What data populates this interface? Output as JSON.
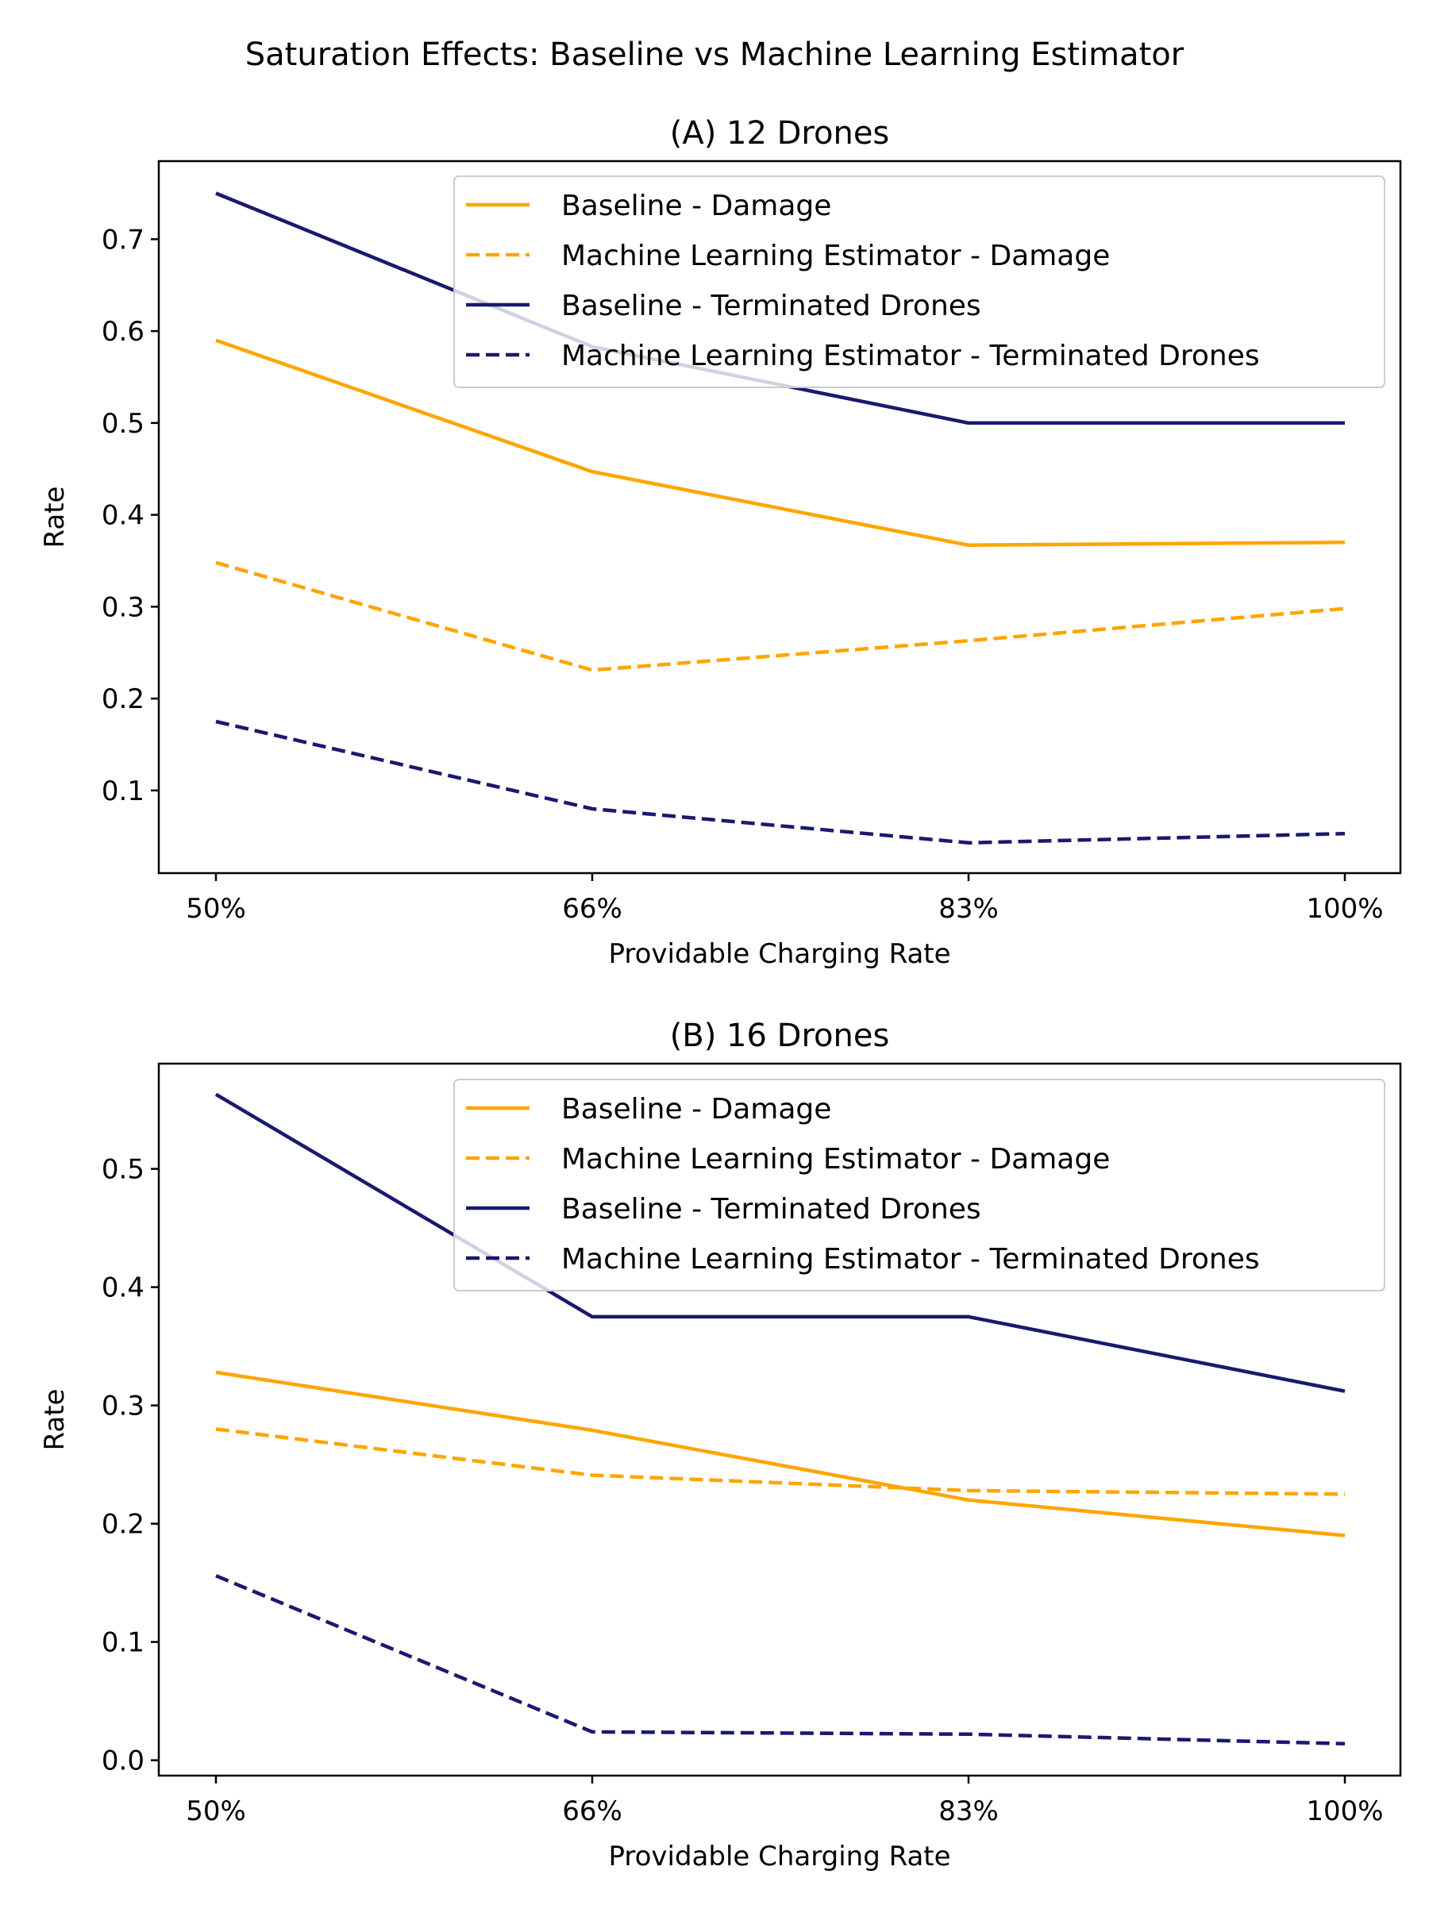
{
  "figure": {
    "title": "Saturation Effects: Baseline vs Machine Learning Estimator"
  },
  "colors": {
    "damage": "#FFA500",
    "terminated": "#191970"
  },
  "chart_data": [
    {
      "type": "line",
      "title": "(A) 12 Drones",
      "xlabel": "Providable Charging Rate",
      "ylabel": "Rate",
      "categories": [
        "50%",
        "66%",
        "83%",
        "100%"
      ],
      "ylim": [
        0.01,
        0.785
      ],
      "yticks": [
        0.1,
        0.2,
        0.3,
        0.4,
        0.5,
        0.6,
        0.7
      ],
      "ytick_labels": [
        "0.1",
        "0.2",
        "0.3",
        "0.4",
        "0.5",
        "0.6",
        "0.7"
      ],
      "legend_position": "upper-right",
      "grid": false,
      "series": [
        {
          "name": "Baseline - Damage",
          "values": [
            0.59,
            0.447,
            0.367,
            0.37
          ],
          "style": "solid",
          "color": "#FFA500"
        },
        {
          "name": "Machine Learning Estimator - Damage",
          "values": [
            0.348,
            0.231,
            0.263,
            0.298
          ],
          "style": "dashed",
          "color": "#FFA500"
        },
        {
          "name": "Baseline - Terminated Drones",
          "values": [
            0.75,
            0.583,
            0.5,
            0.5
          ],
          "style": "solid",
          "color": "#191970"
        },
        {
          "name": "Machine Learning Estimator - Terminated Drones",
          "values": [
            0.175,
            0.08,
            0.043,
            0.053
          ],
          "style": "dashed",
          "color": "#191970"
        }
      ]
    },
    {
      "type": "line",
      "title": "(B) 16 Drones",
      "xlabel": "Providable Charging Rate",
      "ylabel": "Rate",
      "categories": [
        "50%",
        "66%",
        "83%",
        "100%"
      ],
      "ylim": [
        -0.013,
        0.589
      ],
      "yticks": [
        0.0,
        0.1,
        0.2,
        0.3,
        0.4,
        0.5
      ],
      "ytick_labels": [
        "0.0",
        "0.1",
        "0.2",
        "0.3",
        "0.4",
        "0.5"
      ],
      "legend_position": "upper-right",
      "grid": false,
      "series": [
        {
          "name": "Baseline - Damage",
          "values": [
            0.328,
            0.279,
            0.22,
            0.19
          ],
          "style": "solid",
          "color": "#FFA500"
        },
        {
          "name": "Machine Learning Estimator - Damage",
          "values": [
            0.28,
            0.241,
            0.228,
            0.225
          ],
          "style": "dashed",
          "color": "#FFA500"
        },
        {
          "name": "Baseline - Terminated Drones",
          "values": [
            0.563,
            0.375,
            0.375,
            0.312
          ],
          "style": "solid",
          "color": "#191970"
        },
        {
          "name": "Machine Learning Estimator - Terminated Drones",
          "values": [
            0.156,
            0.024,
            0.022,
            0.014
          ],
          "style": "dashed",
          "color": "#191970"
        }
      ]
    }
  ]
}
